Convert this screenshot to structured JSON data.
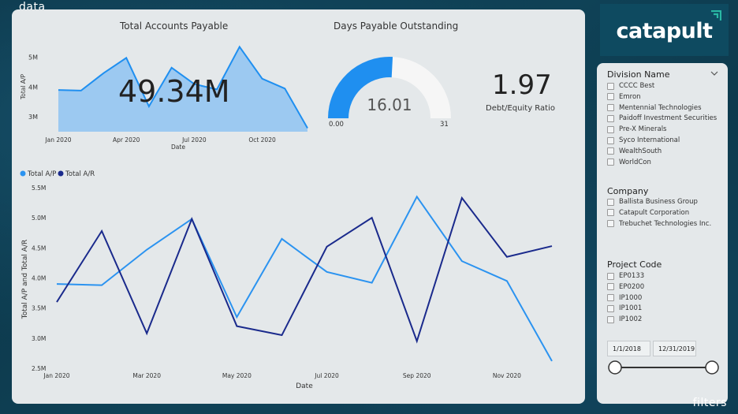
{
  "labels": {
    "data": "data",
    "filters": "filters"
  },
  "logo": {
    "text": "catapult",
    "accent_color": "#2ab8a4"
  },
  "ap_card": {
    "title": "Total Accounts Payable",
    "value": "49.34M",
    "color": "#1f8ff0"
  },
  "dpo_card": {
    "title": "Days Payable Outstanding",
    "value": "16.01",
    "min_label": "0.00",
    "max_label": "31",
    "gauge_value": 16.01,
    "gauge_max": 31,
    "color": "#1f8ff0"
  },
  "ratio_card": {
    "value": "1.97",
    "label": "Debt/Equity Ratio"
  },
  "chart_data": [
    {
      "type": "area",
      "title": "Total Accounts Payable",
      "xlabel": "Date",
      "ylabel": "Total A/P",
      "x_ticks": [
        "Jan 2020",
        "Apr 2020",
        "Jul 2020",
        "Oct 2020"
      ],
      "y_ticks": [
        "5M",
        "4M",
        "3M"
      ],
      "ylim": [
        2.5,
        5.6
      ],
      "series": [
        {
          "values": [
            3.9,
            3.88,
            4.47,
            4.98,
            3.35,
            4.65,
            4.1,
            3.92,
            5.35,
            4.28,
            3.95,
            2.62
          ]
        }
      ]
    },
    {
      "type": "line",
      "xlabel": "Date",
      "ylabel": "Total A/P and Total A/R",
      "x_ticks": [
        "Jan 2020",
        "Mar 2020",
        "May 2020",
        "Jul 2020",
        "Sep 2020",
        "Nov 2020"
      ],
      "y_ticks": [
        "5.5M",
        "5.0M",
        "4.5M",
        "4.0M",
        "3.5M",
        "3.0M",
        "2.5M"
      ],
      "ylim": [
        2.5,
        5.5
      ],
      "legend_position": "top-left",
      "series": [
        {
          "name": "Total A/P",
          "color": "#2b93f0",
          "values": [
            3.9,
            3.88,
            4.47,
            4.98,
            3.35,
            4.65,
            4.1,
            3.92,
            5.35,
            4.28,
            3.95,
            2.62
          ]
        },
        {
          "name": "Total A/R",
          "color": "#1a2a8c",
          "values": [
            3.6,
            4.78,
            3.08,
            4.98,
            3.2,
            3.05,
            4.52,
            5.0,
            2.95,
            5.33,
            4.35,
            4.53
          ]
        }
      ]
    }
  ],
  "filters": {
    "division": {
      "title": "Division Name",
      "items": [
        "CCCC Best",
        "Emron",
        "Mentennial Technologies",
        "Paidoff Investment Securities",
        "Pre-X Minerals",
        "Syco International",
        "WealthSouth",
        "WorldCon"
      ]
    },
    "company": {
      "title": "Company",
      "items": [
        "Ballista Business Group",
        "Catapult Corporation",
        "Trebuchet Technologies Inc."
      ]
    },
    "project": {
      "title": "Project Code",
      "items": [
        "EP0133",
        "EP0200",
        "IP1000",
        "IP1001",
        "IP1002"
      ]
    },
    "date_range": {
      "start": "1/1/2018",
      "end": "12/31/2019",
      "start_fraction": 0,
      "end_fraction": 1
    }
  }
}
